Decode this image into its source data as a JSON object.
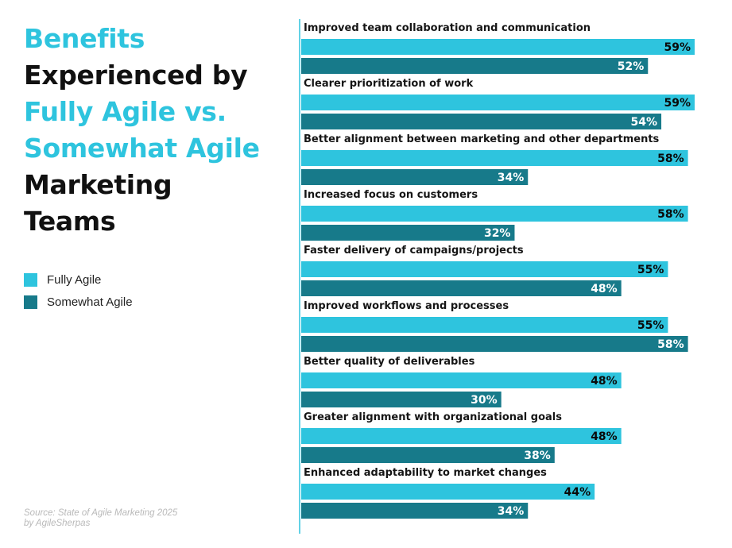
{
  "title": {
    "line1": "Benefits",
    "line2": "Experienced by",
    "line3": "Fully Agile vs.",
    "line4": "Somewhat Agile",
    "line5": "Marketing",
    "line6": "Teams"
  },
  "legend": [
    {
      "label": "Fully Agile",
      "color": "#2ec4de"
    },
    {
      "label": "Somewhat Agile",
      "color": "#177a8a"
    }
  ],
  "source": {
    "line1": "Source: State of Agile Marketing 2025",
    "line2": "by AgileSherpas"
  },
  "colors": {
    "fully": "#2ec4de",
    "somewhat": "#177a8a",
    "axis": "#2ec4de",
    "label_dark": "#0a0a0a",
    "label_light": "#ffffff"
  },
  "chart_data": {
    "type": "bar",
    "orientation": "horizontal",
    "title": "Benefits Experienced by Fully Agile vs. Somewhat Agile Marketing Teams",
    "categories": [
      "Improved team collaboration and communication",
      "Clearer prioritization of work",
      "Better alignment between marketing and other departments",
      "Increased focus on customers",
      "Faster delivery of campaigns/projects",
      "Improved workflows and processes",
      "Better quality of deliverables",
      "Greater alignment with organizational goals",
      "Enhanced adaptability to market changes"
    ],
    "series": [
      {
        "name": "Fully Agile",
        "values": [
          59,
          59,
          58,
          58,
          55,
          55,
          48,
          48,
          44
        ]
      },
      {
        "name": "Somewhat Agile",
        "values": [
          52,
          54,
          34,
          32,
          48,
          58,
          30,
          38,
          34
        ]
      }
    ],
    "value_suffix": "%",
    "xlim": [
      0,
      59
    ]
  }
}
